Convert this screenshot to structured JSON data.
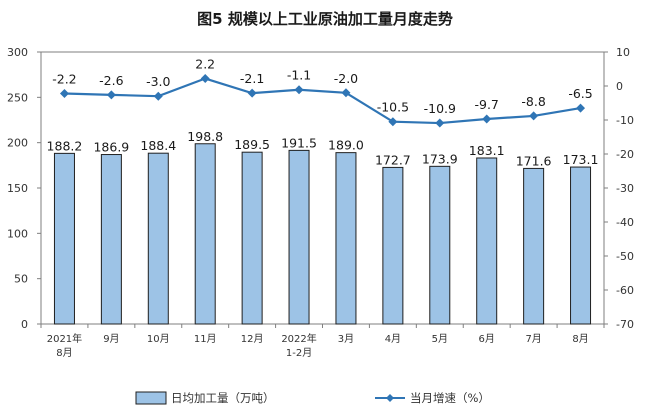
{
  "chart_data": {
    "type": "bar+line",
    "title": "图5  规模以上工业原油加工量月度走势",
    "categories": [
      [
        "2021年",
        "8月"
      ],
      [
        "9月"
      ],
      [
        "10月"
      ],
      [
        "11月"
      ],
      [
        "12月"
      ],
      [
        "2022年",
        "1-2月"
      ],
      [
        "3月"
      ],
      [
        "4月"
      ],
      [
        "5月"
      ],
      [
        "6月"
      ],
      [
        "7月"
      ],
      [
        "8月"
      ]
    ],
    "series": [
      {
        "name": "日均加工量（万吨）",
        "type": "bar",
        "axis": "left",
        "color": "#9dc3e6",
        "values": [
          188.2,
          186.9,
          188.4,
          198.8,
          189.5,
          191.5,
          189.0,
          172.7,
          173.9,
          183.1,
          171.6,
          173.1
        ],
        "labels": [
          "188.2",
          "186.9",
          "188.4",
          "198.8",
          "189.5",
          "191.5",
          "189.0",
          "172.7",
          "173.9",
          "183.1",
          "171.6",
          "173.1"
        ]
      },
      {
        "name": "当月增速（%）",
        "type": "line",
        "axis": "right",
        "color": "#2f75b5",
        "values": [
          -2.2,
          -2.6,
          -3.0,
          2.2,
          -2.1,
          -1.1,
          -2.0,
          -10.5,
          -10.9,
          -9.7,
          -8.8,
          -6.5
        ],
        "labels": [
          "-2.2",
          "-2.6",
          "-3.0",
          "2.2",
          "-2.1",
          "-1.1",
          "-2.0",
          "-10.5",
          "-10.9",
          "-9.7",
          "-8.8",
          "-6.5"
        ]
      }
    ],
    "left_axis": {
      "min": 0,
      "max": 300,
      "ticks": [
        "0",
        "50",
        "100",
        "150",
        "200",
        "250",
        "300"
      ]
    },
    "right_axis": {
      "min": -70,
      "max": 10,
      "ticks": [
        "-70",
        "-60",
        "-50",
        "-40",
        "-30",
        "-20",
        "-10",
        "0",
        "10"
      ]
    },
    "legend": {
      "position": "bottom",
      "bar_label": "日均加工量（万吨）",
      "line_label": "当月增速（%）"
    },
    "grid": false
  }
}
